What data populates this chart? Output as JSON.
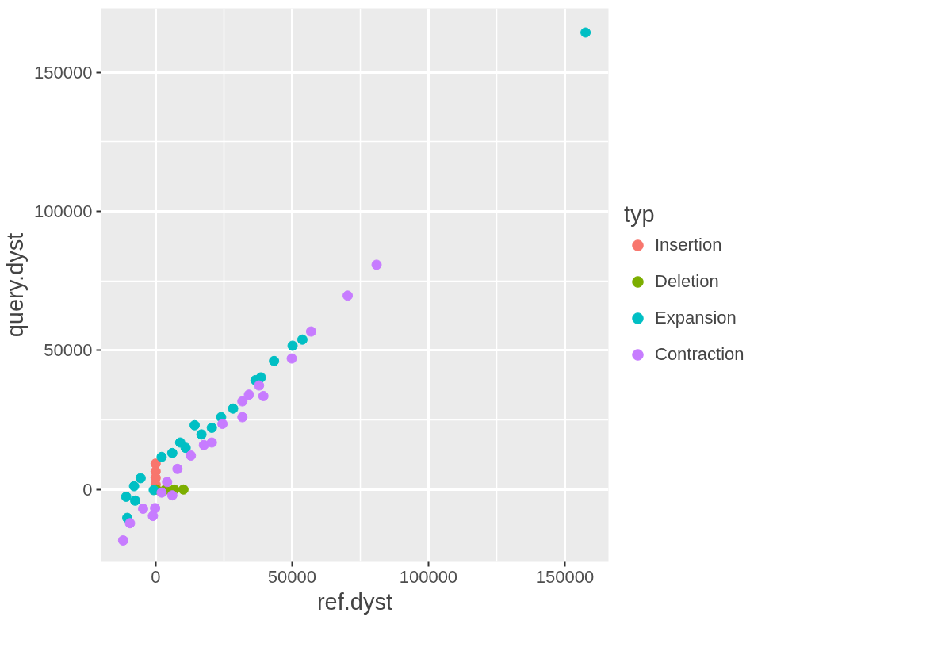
{
  "chart_data": {
    "type": "scatter",
    "xlabel": "ref.dyst",
    "ylabel": "query.dyst",
    "legend_title": "typ",
    "legend": "right",
    "grid": true,
    "marker": "circle",
    "xlim": [
      -20000,
      166000
    ],
    "ylim": [
      -26000,
      173000
    ],
    "xticks": [
      0,
      {
        "value": 25000,
        "label": null
      },
      50000,
      {
        "value": 75000,
        "label": null
      },
      100000,
      {
        "value": 125000,
        "label": null
      },
      150000
    ],
    "yticks": [
      0,
      {
        "value": 25000,
        "label": null
      },
      50000,
      {
        "value": 75000,
        "label": null
      },
      100000,
      {
        "value": 125000,
        "label": null
      },
      150000
    ],
    "series": [
      {
        "name": "Insertion",
        "color": "#f8766d",
        "x": [
          0,
          0,
          0,
          0
        ],
        "values": [
          9300,
          6500,
          4200,
          1800
        ]
      },
      {
        "name": "Deletion",
        "color": "#7cae00",
        "x": [
          300,
          3600,
          6800,
          10200
        ],
        "values": [
          0,
          0,
          0,
          0
        ]
      },
      {
        "name": "Expansion",
        "color": "#00bfc4",
        "x": [
          -10800,
          -10400,
          -7900,
          -5500,
          -7500,
          -700,
          2200,
          6100,
          9000,
          11000,
          14300,
          16800,
          20600,
          24000,
          28400,
          36600,
          38600,
          43400,
          50200,
          53800,
          157600
        ],
        "values": [
          -2600,
          -10200,
          1200,
          4100,
          -4000,
          -200,
          11700,
          13100,
          16900,
          15000,
          23100,
          19800,
          22200,
          26000,
          29100,
          39300,
          40300,
          46200,
          51700,
          53900,
          164300
        ]
      },
      {
        "name": "Contraction",
        "color": "#c77cff",
        "x": [
          -11900,
          -9400,
          -4600,
          -1000,
          -200,
          2200,
          4200,
          6100,
          8000,
          12900,
          17700,
          20600,
          24500,
          31800,
          31800,
          34200,
          37900,
          39500,
          49900,
          57000,
          70400,
          81000
        ],
        "values": [
          -18300,
          -12100,
          -6900,
          -9500,
          -6700,
          -1100,
          2700,
          -2100,
          7400,
          12200,
          16000,
          16900,
          23600,
          26000,
          31700,
          34100,
          37400,
          33600,
          47100,
          56800,
          69700,
          80800
        ]
      }
    ]
  }
}
